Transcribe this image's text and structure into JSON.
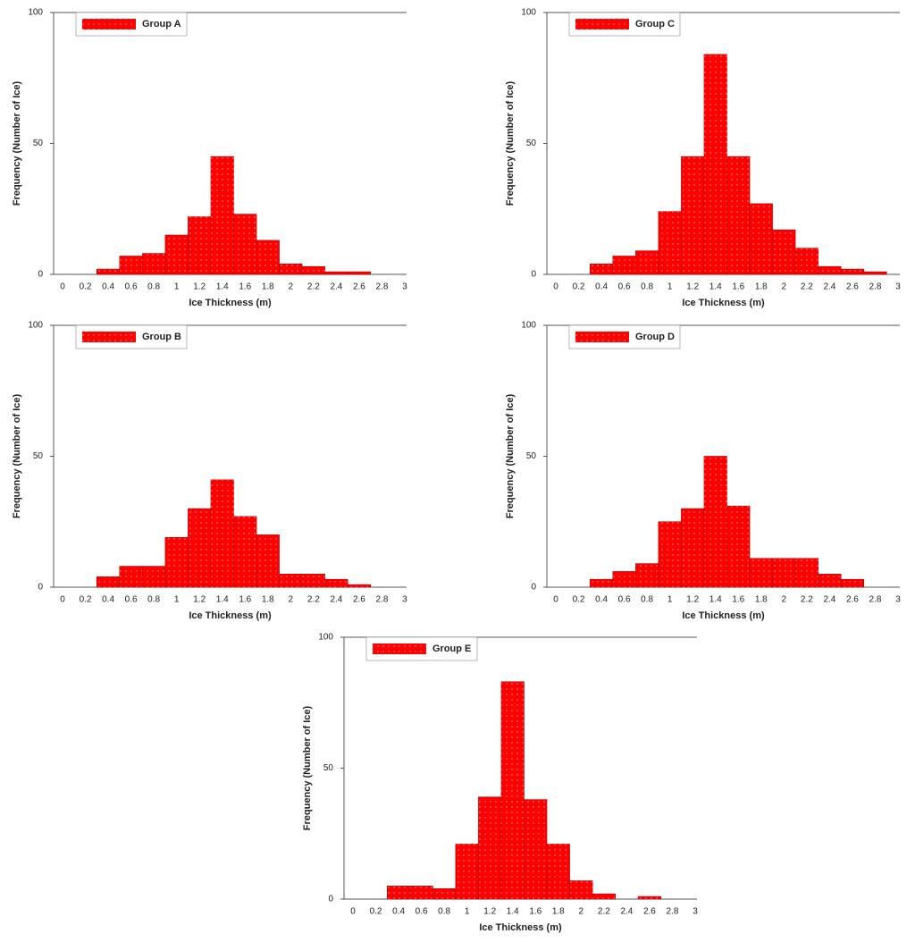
{
  "chart_data": [
    {
      "type": "histogram",
      "xlabel": "Ice Thickness (m)",
      "ylabel": "Frequency (Number of Ice)",
      "bins": [
        0.3,
        0.5,
        0.7,
        0.9,
        1.1,
        1.3,
        1.5,
        1.7,
        1.9,
        2.1,
        2.3,
        2.5,
        2.7
      ],
      "series": [
        {
          "name": "Group A",
          "color": "#ff0000",
          "values": [
            2,
            7,
            8,
            15,
            22,
            45,
            23,
            13,
            4,
            3,
            1,
            1
          ]
        }
      ],
      "xlim": [
        0,
        3
      ],
      "xticks": [
        0,
        0.2,
        0.4,
        0.6,
        0.8,
        1,
        1.2,
        1.4,
        1.6,
        1.8,
        2,
        2.2,
        2.4,
        2.6,
        2.8,
        3
      ],
      "ylim": [
        0,
        100
      ],
      "yticks": [
        0,
        50,
        100
      ]
    },
    {
      "type": "histogram",
      "xlabel": "Ice Thickness (m)",
      "ylabel": "Frequency (Number of Ice)",
      "bins": [
        0.3,
        0.5,
        0.7,
        0.9,
        1.1,
        1.3,
        1.5,
        1.7,
        1.9,
        2.1,
        2.3,
        2.5,
        2.7,
        2.9
      ],
      "series": [
        {
          "name": "Group C",
          "color": "#ff0000",
          "values": [
            4,
            7,
            9,
            24,
            45,
            84,
            45,
            27,
            17,
            10,
            3,
            2,
            1
          ]
        }
      ],
      "xlim": [
        0,
        3
      ],
      "xticks": [
        0,
        0.2,
        0.4,
        0.6,
        0.8,
        1,
        1.2,
        1.4,
        1.6,
        1.8,
        2,
        2.2,
        2.4,
        2.6,
        2.8,
        3
      ],
      "ylim": [
        0,
        100
      ],
      "yticks": [
        0,
        50,
        100
      ]
    },
    {
      "type": "histogram",
      "xlabel": "Ice Thickness (m)",
      "ylabel": "Frequency (Number of Ice)",
      "bins": [
        0.3,
        0.5,
        0.7,
        0.9,
        1.1,
        1.3,
        1.5,
        1.7,
        1.9,
        2.1,
        2.3,
        2.5,
        2.7
      ],
      "series": [
        {
          "name": "Group B",
          "color": "#ff0000",
          "values": [
            4,
            8,
            8,
            19,
            30,
            41,
            27,
            20,
            5,
            5,
            3,
            1
          ]
        }
      ],
      "xlim": [
        0,
        3
      ],
      "xticks": [
        0,
        0.2,
        0.4,
        0.6,
        0.8,
        1,
        1.2,
        1.4,
        1.6,
        1.8,
        2,
        2.2,
        2.4,
        2.6,
        2.8,
        3
      ],
      "ylim": [
        0,
        100
      ],
      "yticks": [
        0,
        50,
        100
      ]
    },
    {
      "type": "histogram",
      "xlabel": "Ice Thickness (m)",
      "ylabel": "Frequency (Number of Ice)",
      "bins": [
        0.3,
        0.5,
        0.7,
        0.9,
        1.1,
        1.3,
        1.5,
        1.7,
        1.9,
        2.1,
        2.3,
        2.5,
        2.7
      ],
      "series": [
        {
          "name": "Group D",
          "color": "#ff0000",
          "values": [
            3,
            6,
            9,
            25,
            30,
            50,
            31,
            11,
            11,
            11,
            5,
            3
          ]
        }
      ],
      "xlim": [
        0,
        3
      ],
      "xticks": [
        0,
        0.2,
        0.4,
        0.6,
        0.8,
        1,
        1.2,
        1.4,
        1.6,
        1.8,
        2,
        2.2,
        2.4,
        2.6,
        2.8,
        3
      ],
      "ylim": [
        0,
        100
      ],
      "yticks": [
        0,
        50,
        100
      ]
    },
    {
      "type": "histogram",
      "xlabel": "Ice Thickness (m)",
      "ylabel": "Frequency (Number of Ice)",
      "bins": [
        0.3,
        0.5,
        0.7,
        0.9,
        1.1,
        1.3,
        1.5,
        1.7,
        1.9,
        2.1,
        2.3,
        2.5,
        2.7
      ],
      "series": [
        {
          "name": "Group E",
          "color": "#ff0000",
          "values": [
            5,
            5,
            4,
            21,
            39,
            83,
            38,
            21,
            7,
            2,
            0,
            1
          ]
        }
      ],
      "xlim": [
        0,
        3
      ],
      "xticks": [
        0,
        0.2,
        0.4,
        0.6,
        0.8,
        1,
        1.2,
        1.4,
        1.6,
        1.8,
        2,
        2.2,
        2.4,
        2.6,
        2.8,
        3
      ],
      "ylim": [
        0,
        100
      ],
      "yticks": [
        0,
        50,
        100
      ]
    }
  ]
}
